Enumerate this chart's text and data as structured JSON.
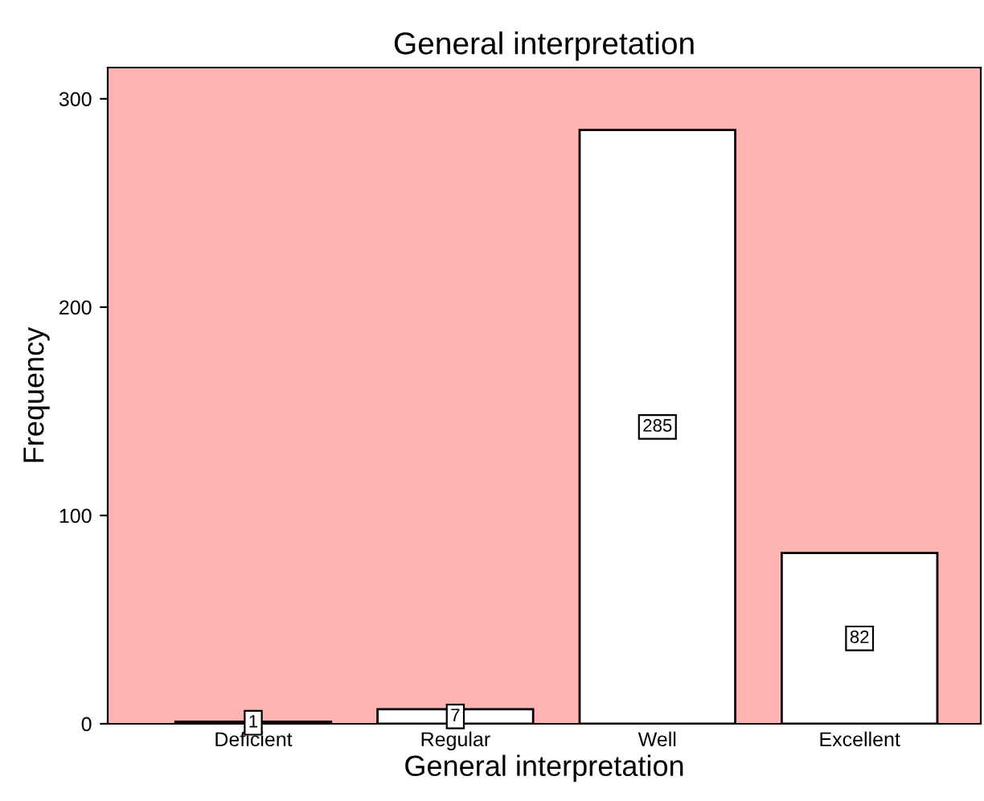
{
  "chart_data": {
    "type": "bar",
    "title": "General interpretation",
    "xlabel": "General interpretation",
    "ylabel": "Frequency",
    "categories": [
      "Deficient",
      "Regular",
      "Well",
      "Excellent"
    ],
    "values": [
      1,
      7,
      285,
      82
    ],
    "color": "#ffffff",
    "ylim": [
      0,
      315
    ],
    "yticks": [
      0,
      100,
      200,
      300
    ],
    "grid": false,
    "data_labels": true
  }
}
